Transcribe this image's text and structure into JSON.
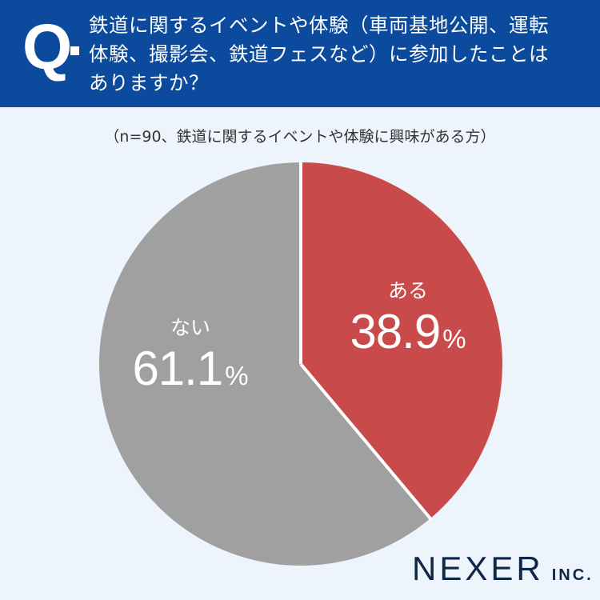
{
  "header": {
    "q_mark": "Q",
    "question": "鉄道に関するイベントや体験（車両基地公開、運転体験、撮影会、鉄道フェスなど）に参加したことはありますか？",
    "question_lines": [
      "鉄道に関するイベントや体験（車両基地公開、運転",
      "体験、撮影会、鉄道フェスなど）に参加したことは",
      "ありますか？"
    ]
  },
  "subtitle": "（n=90、鉄道に関するイベントや体験に興味がある方）",
  "labels": {
    "yes": {
      "name": "ある",
      "value": "38.9",
      "unit": "%"
    },
    "no": {
      "name": "ない",
      "value": "61.1",
      "unit": "%"
    }
  },
  "logo": {
    "main": "NEXER",
    "suffix": "INC."
  },
  "colors": {
    "header": "#0b4a9c",
    "background": "#eef4fb",
    "yes": "#c84a4a",
    "no": "#a0a0a0"
  },
  "chart_data": {
    "type": "pie",
    "title": "鉄道に関するイベントや体験（車両基地公開、運転体験、撮影会、鉄道フェスなど）に参加したことはありますか？",
    "subtitle": "（n=90、鉄道に関するイベントや体験に興味がある方）",
    "categories": [
      "ある",
      "ない"
    ],
    "values": [
      38.9,
      61.1
    ],
    "unit": "%",
    "colors": [
      "#c84a4a",
      "#a0a0a0"
    ],
    "start_angle": "12 o'clock, clockwise",
    "legend": "none (labels inside slices)"
  }
}
